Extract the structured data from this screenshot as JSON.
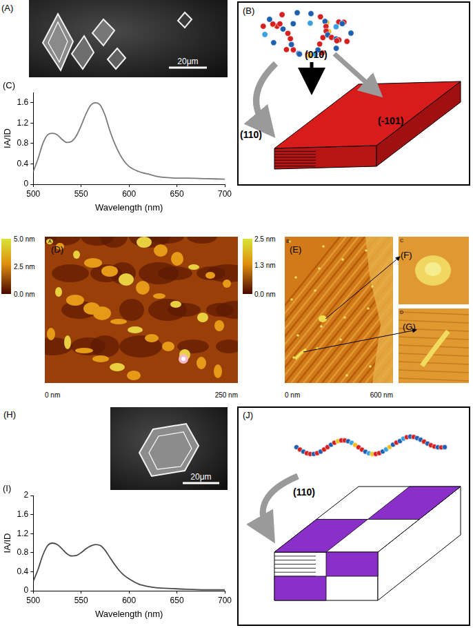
{
  "chart_data": [
    {
      "panel": "(C)",
      "type": "line",
      "x": [
        500,
        505,
        510,
        515,
        520,
        525,
        530,
        535,
        540,
        545,
        550,
        555,
        560,
        565,
        570,
        575,
        580,
        585,
        590,
        595,
        600,
        610,
        615,
        620,
        630,
        640,
        650,
        660,
        680,
        700
      ],
      "values": [
        0.25,
        0.5,
        0.8,
        0.97,
        1.0,
        0.97,
        0.88,
        0.82,
        0.84,
        0.95,
        1.15,
        1.38,
        1.55,
        1.6,
        1.55,
        1.35,
        1.05,
        0.8,
        0.6,
        0.45,
        0.35,
        0.25,
        0.22,
        0.2,
        0.15,
        0.13,
        0.12,
        0.12,
        0.11,
        0.1
      ],
      "color": "#7a7a7a",
      "x_label": "Wavelength (nm)",
      "y_label": "IA/ID",
      "xlim": [
        500,
        700
      ],
      "xticks": [
        500,
        550,
        600,
        650,
        700
      ],
      "ylim": [
        0,
        1.8
      ],
      "yticks": [
        0,
        0.4,
        0.8,
        1.2,
        1.6
      ],
      "grid": false
    },
    {
      "panel": "(I)",
      "type": "line",
      "x": [
        500,
        505,
        510,
        515,
        520,
        525,
        530,
        535,
        540,
        545,
        550,
        555,
        560,
        565,
        570,
        575,
        580,
        585,
        590,
        595,
        600,
        610,
        615,
        620,
        630,
        640,
        650,
        660,
        680,
        700
      ],
      "values": [
        0.2,
        0.45,
        0.75,
        0.95,
        1.0,
        0.97,
        0.88,
        0.78,
        0.73,
        0.74,
        0.8,
        0.88,
        0.94,
        0.97,
        0.95,
        0.85,
        0.7,
        0.55,
        0.42,
        0.32,
        0.25,
        0.14,
        0.11,
        0.09,
        0.06,
        0.05,
        0.04,
        0.03,
        0.02,
        0.02
      ],
      "color": "#4a4a4a",
      "x_label": "Wavelength (nm)",
      "y_label": "IA/ID",
      "xlim": [
        500,
        700
      ],
      "xticks": [
        500,
        550,
        600,
        650,
        700
      ],
      "ylim": [
        0,
        2
      ],
      "yticks": [
        0,
        0.4,
        0.8,
        1.2,
        1.6,
        2
      ],
      "grid": false
    }
  ],
  "images": [
    {
      "panel": "(A)",
      "scale_bar": "20μm"
    },
    {
      "panel": "(H)",
      "scale_bar": "20μm"
    }
  ],
  "afm": [
    {
      "panel": "(D)",
      "corner_letter": "A",
      "colorbar": {
        "range": [
          0,
          5
        ],
        "ticks": [
          {
            "value": 5.0,
            "label": "5.0 nm"
          },
          {
            "value": 2.5,
            "label": "2.5 nm"
          },
          {
            "value": 0.0,
            "label": "0.0 nm"
          }
        ]
      },
      "x_extent": [
        {
          "value": 0,
          "label": "0 nm"
        },
        {
          "value": 250,
          "label": "250 nm"
        }
      ]
    },
    {
      "panel": "(E)",
      "corner_letter": "B",
      "colorbar": {
        "range": [
          0,
          2.5
        ],
        "ticks": [
          {
            "value": 2.5,
            "label": "2.5 nm"
          },
          {
            "value": 1.3,
            "label": "1.3 nm"
          },
          {
            "value": 0.0,
            "label": "0.0 nm"
          }
        ]
      },
      "x_extent": [
        {
          "value": 0,
          "label": "0 nm"
        },
        {
          "value": 600,
          "label": "600 nm"
        }
      ]
    }
  ],
  "insets": [
    {
      "panel": "(F)",
      "corner_letter": "C"
    },
    {
      "panel": "(G)",
      "corner_letter": "D"
    }
  ],
  "diagrams": [
    {
      "panel": "(B)",
      "faces": [
        "(010)",
        "(110)",
        "(-101)"
      ]
    },
    {
      "panel": "(J)",
      "faces": [
        "(110)"
      ]
    }
  ]
}
